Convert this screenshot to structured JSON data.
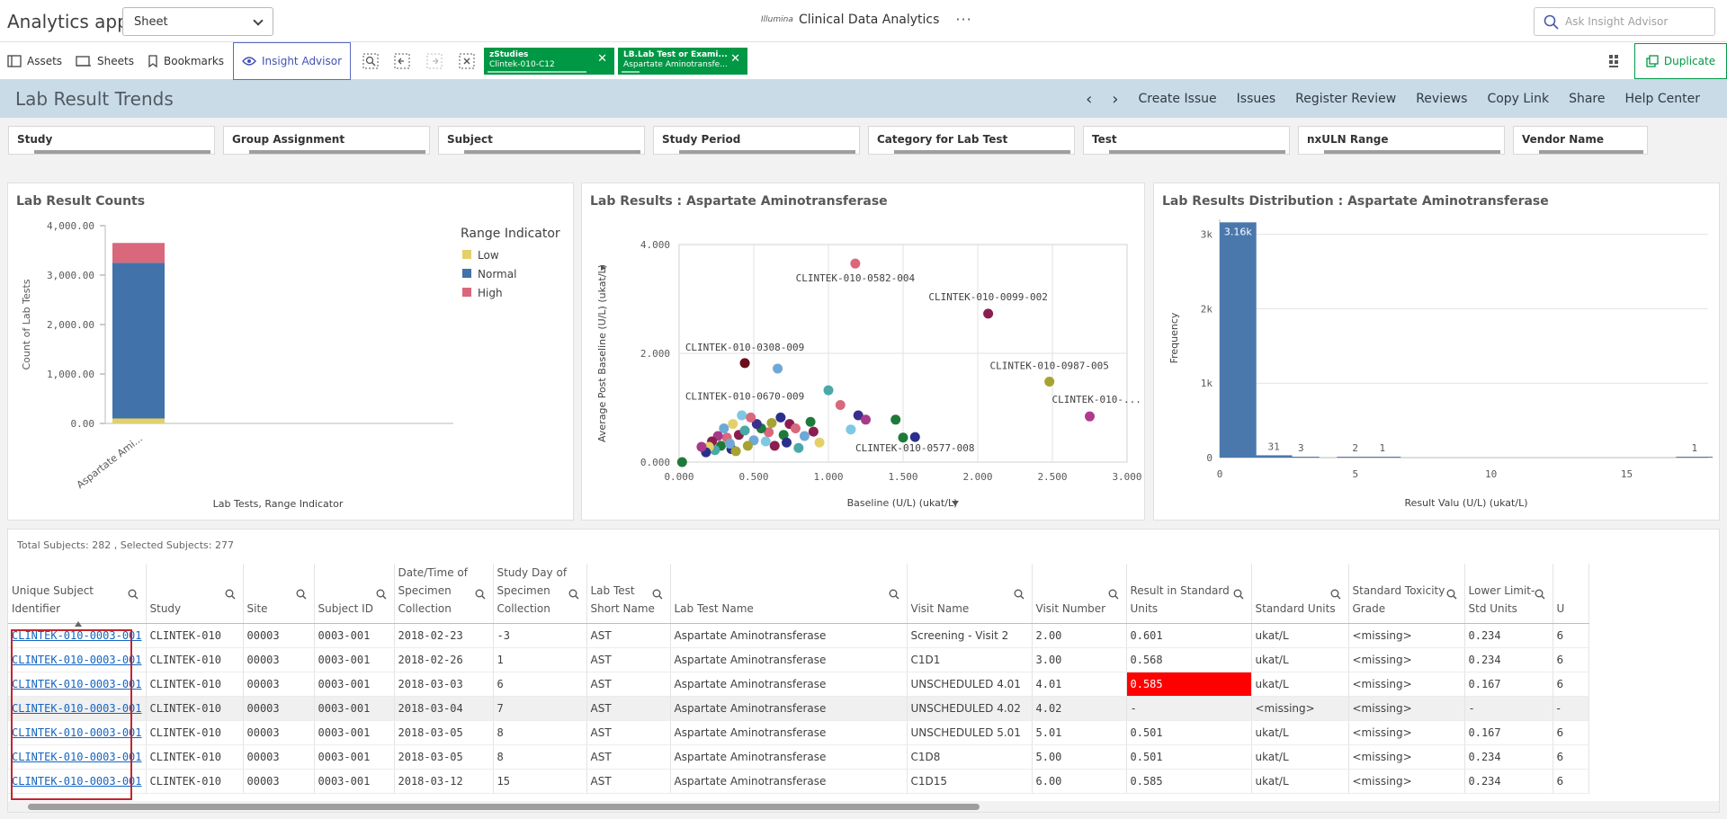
{
  "app": {
    "title": "Analytics app",
    "sheet_select": "Sheet",
    "logo_text": "Illumina",
    "center_title": "Clinical Data Analytics",
    "more": "···",
    "ask_placeholder": "Ask Insight Advisor"
  },
  "toolbar": {
    "assets": "Assets",
    "sheets": "Sheets",
    "bookmarks": "Bookmarks",
    "insight": "Insight Advisor",
    "duplicate": "Duplicate",
    "chips": [
      {
        "title": "zStudies",
        "value": "Clintek-010-C12"
      },
      {
        "title": "LB.Lab Test or Exami...",
        "value": "Aspartate Aminotransfe..."
      }
    ]
  },
  "sheet": {
    "title": "Lab Result Trends",
    "nav": [
      "Create Issue",
      "Issues",
      "Register Review",
      "Reviews",
      "Copy Link",
      "Share",
      "Help Center"
    ]
  },
  "filters": [
    "Study",
    "Group Assignment",
    "Subject",
    "Study Period",
    "Category for Lab Test",
    "Test",
    "nxULN Range",
    "Vendor Name"
  ],
  "colors": {
    "low": "#e3d06b",
    "normal": "#4172a9",
    "high": "#d9687c",
    "selected_green": "#009845",
    "bar_blue": "#4a78ad"
  },
  "chart_data": [
    {
      "type": "bar",
      "title": "Lab Result Counts",
      "xlabel": "Lab Tests, Range Indicator",
      "ylabel": "Count of Lab Tests",
      "categories": [
        "Aspartate Ami..."
      ],
      "ylim": [
        0,
        4000
      ],
      "yticks": [
        "4,000.00",
        "3,000.00",
        "2,000.00",
        "1,000.00",
        "0.00"
      ],
      "legend_title": "Range Indicator",
      "legend_position": "top-right",
      "series": [
        {
          "name": "Low",
          "values": [
            100
          ]
        },
        {
          "name": "Normal",
          "values": [
            3150
          ]
        },
        {
          "name": "High",
          "values": [
            400
          ]
        }
      ]
    },
    {
      "type": "scatter",
      "title": "Lab Results : Aspartate Aminotransferase",
      "xlabel": "Baseline (U/L) (ukat/L)",
      "ylabel": "Average Post Baseline (U/L) (ukat/L)",
      "xlim": [
        0,
        3
      ],
      "ylim": [
        0,
        4
      ],
      "xticks": [
        "0.000",
        "0.500",
        "1.000",
        "1.500",
        "2.000",
        "2.500",
        "3.000"
      ],
      "yticks": [
        "4.000",
        "2.000",
        "0.000"
      ],
      "labels": [
        {
          "text": "CLINTEK-010-0582-004",
          "x": 1.18,
          "y": 3.65
        },
        {
          "text": "CLINTEK-010-0099-002",
          "x": 2.07,
          "y": 2.73
        },
        {
          "text": "CLINTEK-010-0308-009",
          "x": 0.44,
          "y": 1.82
        },
        {
          "text": "CLINTEK-010-0987-005",
          "x": 2.48,
          "y": 1.48
        },
        {
          "text": "CLINTEK-010-0670-009",
          "x": 0.44,
          "y": 0.92
        },
        {
          "text": "CLINTEK-010-...",
          "x": 2.75,
          "y": 0.84
        },
        {
          "text": "CLINTEK-010-0577-008",
          "x": 1.58,
          "y": 0.46
        }
      ],
      "points": [
        {
          "x": 1.18,
          "y": 3.65,
          "c": "#d9687c"
        },
        {
          "x": 2.07,
          "y": 2.73,
          "c": "#8b1e4f"
        },
        {
          "x": 0.44,
          "y": 1.82,
          "c": "#6b0f1a"
        },
        {
          "x": 0.66,
          "y": 1.72,
          "c": "#6fa8d6"
        },
        {
          "x": 2.48,
          "y": 1.48,
          "c": "#a6a332"
        },
        {
          "x": 1.0,
          "y": 1.32,
          "c": "#4aa8a8"
        },
        {
          "x": 1.08,
          "y": 1.05,
          "c": "#d9687c"
        },
        {
          "x": 2.75,
          "y": 0.84,
          "c": "#b03a8c"
        },
        {
          "x": 1.2,
          "y": 0.86,
          "c": "#3a2f8c"
        },
        {
          "x": 1.25,
          "y": 0.78,
          "c": "#a83a8c"
        },
        {
          "x": 1.45,
          "y": 0.78,
          "c": "#1f7a3a"
        },
        {
          "x": 1.15,
          "y": 0.6,
          "c": "#7ec8e3"
        },
        {
          "x": 1.5,
          "y": 0.45,
          "c": "#1f7a3a"
        },
        {
          "x": 1.58,
          "y": 0.46,
          "c": "#2b2f8c"
        },
        {
          "x": 0.94,
          "y": 0.36,
          "c": "#e3d06b"
        },
        {
          "x": 0.8,
          "y": 0.26,
          "c": "#4aa8a8"
        },
        {
          "x": 0.88,
          "y": 0.74,
          "c": "#1f7a3a"
        },
        {
          "x": 0.74,
          "y": 0.7,
          "c": "#8b1e4f"
        },
        {
          "x": 0.68,
          "y": 0.82,
          "c": "#2b2f8c"
        },
        {
          "x": 0.6,
          "y": 0.55,
          "c": "#d9687c"
        },
        {
          "x": 0.55,
          "y": 0.62,
          "c": "#1f7a3a"
        },
        {
          "x": 0.5,
          "y": 0.4,
          "c": "#6fa8d6"
        },
        {
          "x": 0.46,
          "y": 0.3,
          "c": "#a6a332"
        },
        {
          "x": 0.42,
          "y": 0.86,
          "c": "#7ec8e3"
        },
        {
          "x": 0.4,
          "y": 0.5,
          "c": "#8b1e4f"
        },
        {
          "x": 0.36,
          "y": 0.7,
          "c": "#e3d06b"
        },
        {
          "x": 0.35,
          "y": 0.24,
          "c": "#2b2f8c"
        },
        {
          "x": 0.32,
          "y": 0.45,
          "c": "#d9687c"
        },
        {
          "x": 0.3,
          "y": 0.62,
          "c": "#6fa8d6"
        },
        {
          "x": 0.28,
          "y": 0.3,
          "c": "#1f7a3a"
        },
        {
          "x": 0.26,
          "y": 0.48,
          "c": "#a83a8c"
        },
        {
          "x": 0.24,
          "y": 0.22,
          "c": "#4aa8a8"
        },
        {
          "x": 0.22,
          "y": 0.38,
          "c": "#8b1e4f"
        },
        {
          "x": 0.2,
          "y": 0.28,
          "c": "#e3d06b"
        },
        {
          "x": 0.18,
          "y": 0.18,
          "c": "#2b2f8c"
        },
        {
          "x": 0.15,
          "y": 0.28,
          "c": "#a83a8c"
        },
        {
          "x": 0.52,
          "y": 0.7,
          "c": "#3a2f8c"
        },
        {
          "x": 0.58,
          "y": 0.38,
          "c": "#7ec8e3"
        },
        {
          "x": 0.62,
          "y": 0.72,
          "c": "#a6a332"
        },
        {
          "x": 0.7,
          "y": 0.5,
          "c": "#1f7a3a"
        },
        {
          "x": 0.78,
          "y": 0.62,
          "c": "#d9687c"
        },
        {
          "x": 0.84,
          "y": 0.48,
          "c": "#6fa8d6"
        },
        {
          "x": 0.9,
          "y": 0.56,
          "c": "#8b1e4f"
        },
        {
          "x": 0.34,
          "y": 0.34,
          "c": "#6fa8d6"
        },
        {
          "x": 0.44,
          "y": 0.58,
          "c": "#4aa8a8"
        },
        {
          "x": 0.48,
          "y": 0.82,
          "c": "#d9687c"
        },
        {
          "x": 0.38,
          "y": 0.2,
          "c": "#a6a332"
        },
        {
          "x": 0.64,
          "y": 0.3,
          "c": "#8b1e4f"
        },
        {
          "x": 0.72,
          "y": 0.36,
          "c": "#2b2f8c"
        },
        {
          "x": 0.02,
          "y": 0.0,
          "c": "#1f7a3a"
        }
      ]
    },
    {
      "type": "bar",
      "title": "Lab Results Distribution : Aspartate Aminotransferase",
      "xlabel": "Result Valu  (U/L) (ukat/L)",
      "ylabel": "Frequency",
      "xlim": [
        0,
        18
      ],
      "ylim": [
        0,
        3200
      ],
      "xticks": [
        "0",
        "5",
        "10",
        "15"
      ],
      "yticks": [
        "3k",
        "2k",
        "1k",
        "0"
      ],
      "bins": [
        {
          "x": 1,
          "value": 3160,
          "label": "3.16k"
        },
        {
          "x": 2,
          "value": 31,
          "label": "31"
        },
        {
          "x": 3,
          "value": 3,
          "label": "3"
        },
        {
          "x": 5,
          "value": 2,
          "label": "2"
        },
        {
          "x": 6,
          "value": 1,
          "label": "1"
        },
        {
          "x": 17.5,
          "value": 1,
          "label": "1"
        }
      ]
    }
  ],
  "table": {
    "totals": "Total Subjects: 282 , Selected Subjects: 277",
    "columns": [
      {
        "label": "Unique Subject Identifier",
        "w": 137
      },
      {
        "label": "Study",
        "w": 108
      },
      {
        "label": "Site",
        "w": 79
      },
      {
        "label": "Subject ID",
        "w": 89
      },
      {
        "label": "Date/Time of Specimen Collection",
        "w": 110
      },
      {
        "label": "Study Day of Specimen Collection",
        "w": 104
      },
      {
        "label": "Lab Test Short Name",
        "w": 93
      },
      {
        "label": "Lab Test Name",
        "w": 263
      },
      {
        "label": "Visit Name",
        "w": 139
      },
      {
        "label": "Visit Number",
        "w": 105
      },
      {
        "label": "Result in Standard Units",
        "w": 139
      },
      {
        "label": "Standard Units",
        "w": 108
      },
      {
        "label": "Standard Toxicity Grade",
        "w": 129
      },
      {
        "label": "Lower Limit-Std Units",
        "w": 98
      },
      {
        "label": "U",
        "w": 40
      }
    ],
    "rows": [
      [
        "CLINTEK-010-0003-001",
        "CLINTEK-010",
        "00003",
        "0003-001",
        "2018-02-23",
        "-3",
        "AST",
        "Aspartate Aminotransferase",
        "Screening - Visit 2",
        "2.00",
        "0.601",
        "ukat/L",
        "<missing>",
        "0.234",
        "6"
      ],
      [
        "CLINTEK-010-0003-001",
        "CLINTEK-010",
        "00003",
        "0003-001",
        "2018-02-26",
        "1",
        "AST",
        "Aspartate Aminotransferase",
        "C1D1",
        "3.00",
        "0.568",
        "ukat/L",
        "<missing>",
        "0.234",
        "6"
      ],
      [
        "CLINTEK-010-0003-001",
        "CLINTEK-010",
        "00003",
        "0003-001",
        "2018-03-03",
        "6",
        "AST",
        "Aspartate Aminotransferase",
        "UNSCHEDULED 4.01",
        "4.01",
        "0.585",
        "ukat/L",
        "<missing>",
        "0.167",
        "6"
      ],
      [
        "CLINTEK-010-0003-001",
        "CLINTEK-010",
        "00003",
        "0003-001",
        "2018-03-04",
        "7",
        "AST",
        "Aspartate Aminotransferase",
        "UNSCHEDULED 4.02",
        "4.02",
        "-",
        "<missing>",
        "<missing>",
        "-",
        "-"
      ],
      [
        "CLINTEK-010-0003-001",
        "CLINTEK-010",
        "00003",
        "0003-001",
        "2018-03-05",
        "8",
        "AST",
        "Aspartate Aminotransferase",
        "UNSCHEDULED 5.01",
        "5.01",
        "0.501",
        "ukat/L",
        "<missing>",
        "0.167",
        "6"
      ],
      [
        "CLINTEK-010-0003-001",
        "CLINTEK-010",
        "00003",
        "0003-001",
        "2018-03-05",
        "8",
        "AST",
        "Aspartate Aminotransferase",
        "C1D8",
        "5.00",
        "0.501",
        "ukat/L",
        "<missing>",
        "0.234",
        "6"
      ],
      [
        "CLINTEK-010-0003-001",
        "CLINTEK-010",
        "00003",
        "0003-001",
        "2018-03-12",
        "15",
        "AST",
        "Aspartate Aminotransferase",
        "C1D15",
        "6.00",
        "0.585",
        "ukat/L",
        "<missing>",
        "0.234",
        "6"
      ]
    ],
    "highlight": {
      "row": 2,
      "col": 10
    },
    "gray_row": 3
  }
}
